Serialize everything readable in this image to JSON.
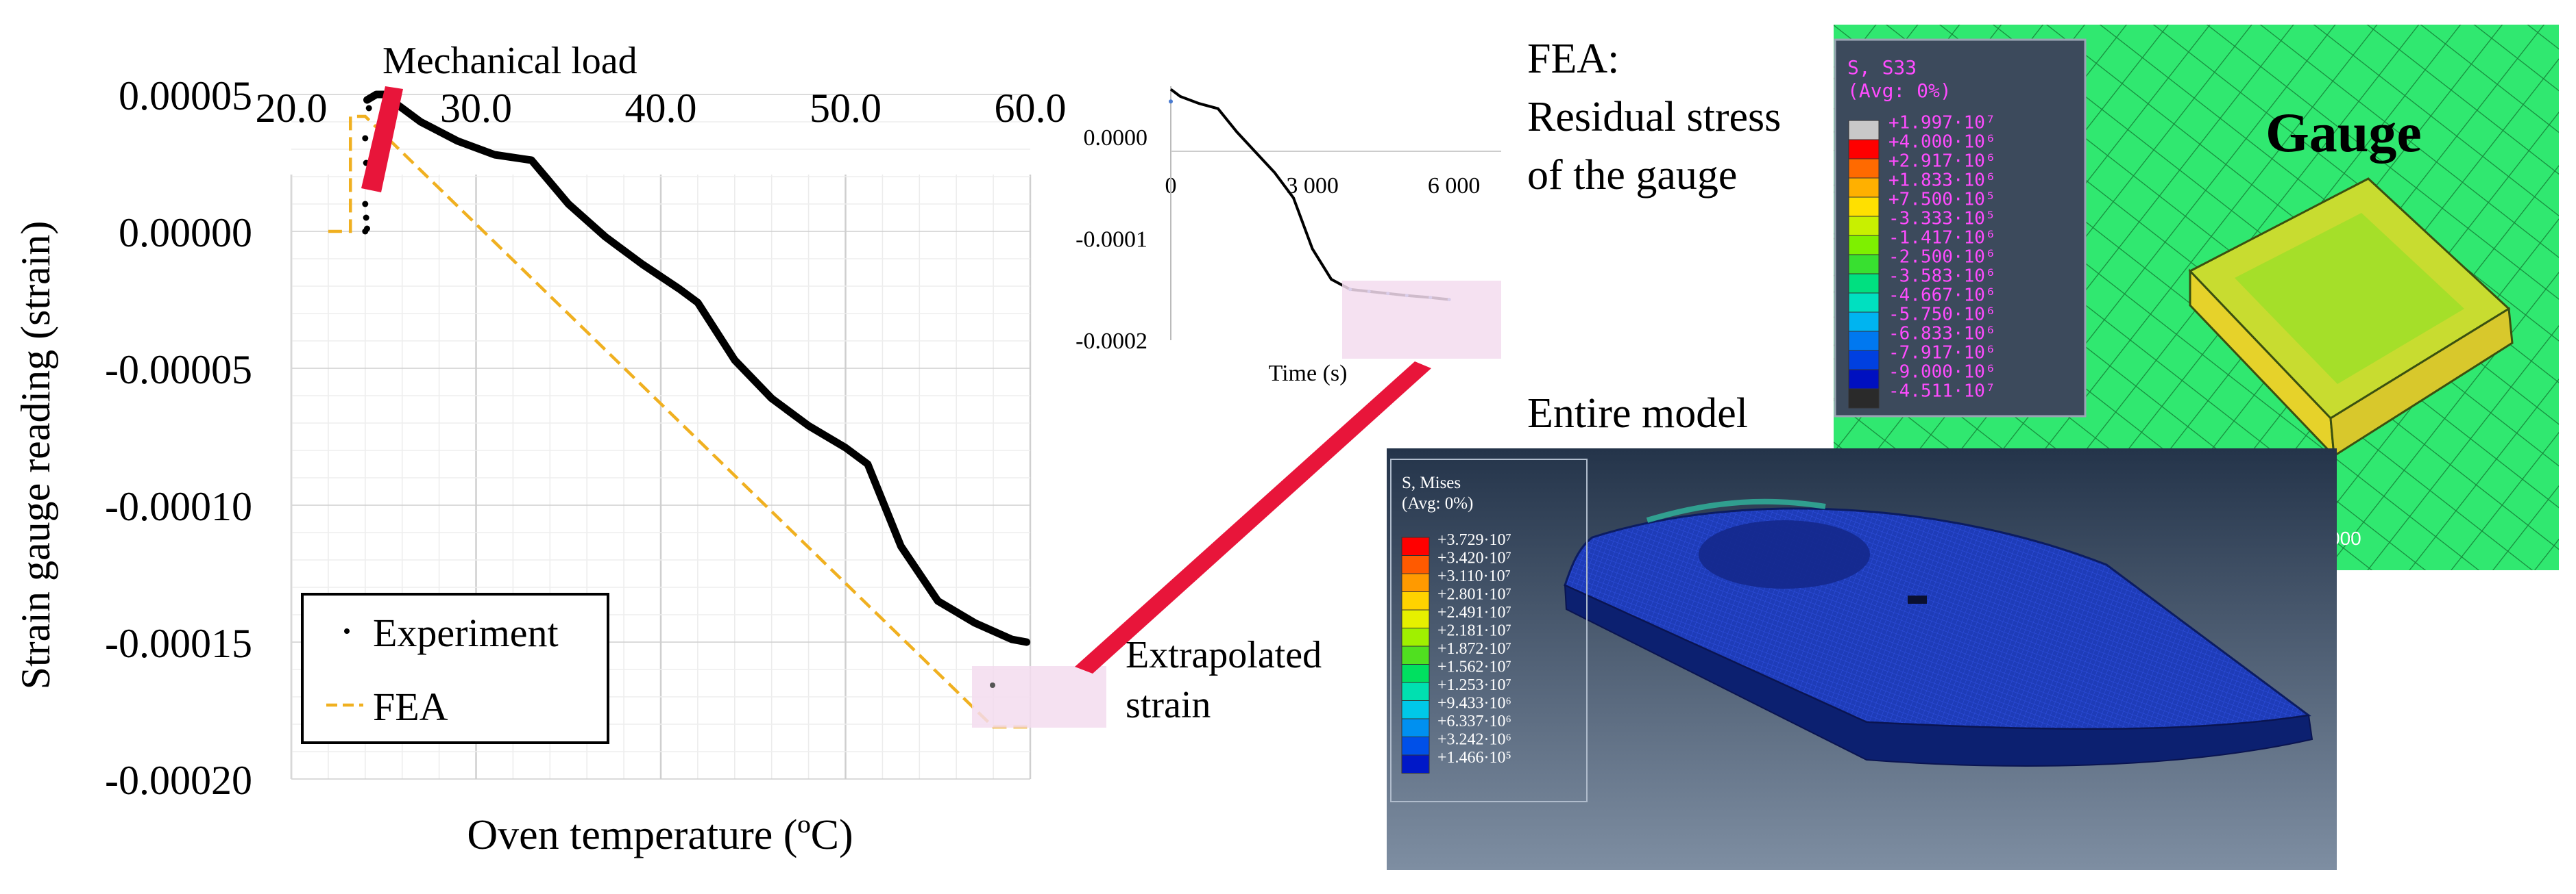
{
  "main_chart": {
    "ylabel": "Strain gauge reading (strain)",
    "xlabel": "Oven temperature (ºC)",
    "top_ticks": [
      "20.0",
      "30.0",
      "40.0",
      "50.0",
      "60.0"
    ],
    "y_ticks": [
      "0.00005",
      "0.00000",
      "-0.00005",
      "-0.00010",
      "-0.00015",
      "-0.00020"
    ],
    "xlim": [
      20,
      60
    ],
    "ylim": [
      -0.0002,
      5e-05
    ],
    "legend": {
      "experiment": "Experiment",
      "fea": "FEA"
    },
    "annotation_mech": "Mechanical load",
    "annotation_extrap": [
      "Extrapolated",
      "strain"
    ]
  },
  "inset_chart": {
    "xlabel": "Time (s)",
    "x_ticks": [
      "0",
      "3 000",
      "6 000"
    ],
    "y_ticks": [
      "0.0000",
      "-0.0001",
      "-0.0002"
    ]
  },
  "fea_labels": {
    "title": [
      "FEA:",
      "Residual stress",
      "of the gauge"
    ],
    "entire": "Entire model",
    "gauge": "Gauge"
  },
  "s33_legend": {
    "title": "S, S33",
    "avg": "(Avg: 0%)",
    "values": [
      "+1.997·10⁷",
      "+4.000·10⁶",
      "+2.917·10⁶",
      "+1.833·10⁶",
      "+7.500·10⁵",
      "-3.333·10⁵",
      "-1.417·10⁶",
      "-2.500·10⁶",
      "-3.583·10⁶",
      "-4.667·10⁶",
      "-5.750·10⁶",
      "-6.833·10⁶",
      "-7.917·10⁶",
      "-9.000·10⁶",
      "-4.511·10⁷"
    ],
    "colors": [
      "#c8c8c8",
      "#ff0000",
      "#ff6a00",
      "#ffb000",
      "#ffe000",
      "#c8f000",
      "#7ef000",
      "#38e030",
      "#00e080",
      "#00e0c0",
      "#00b4f0",
      "#0078f0",
      "#0040e0",
      "#0010c0",
      "#2a2a2a"
    ],
    "partial_text": "000"
  },
  "mises_legend": {
    "title": "S, Mises",
    "avg": "(Avg: 0%)",
    "values": [
      "+3.729·10⁷",
      "+3.420·10⁷",
      "+3.110·10⁷",
      "+2.801·10⁷",
      "+2.491·10⁷",
      "+2.181·10⁷",
      "+1.872·10⁷",
      "+1.562·10⁷",
      "+1.253·10⁷",
      "+9.433·10⁶",
      "+6.337·10⁶",
      "+3.242·10⁶",
      "+1.466·10⁵"
    ],
    "colors": [
      "#ff0000",
      "#ff5a00",
      "#ff9a00",
      "#ffd200",
      "#e6f000",
      "#a0f000",
      "#50e020",
      "#00e060",
      "#00e0b0",
      "#00c8e8",
      "#0090f0",
      "#0050e8",
      "#0018c8"
    ]
  },
  "chart_data": [
    {
      "type": "line",
      "title": "",
      "xlabel": "Oven temperature (ºC)",
      "ylabel": "Strain gauge reading (strain)",
      "xlim": [
        20,
        60
      ],
      "ylim": [
        -0.0002,
        5e-05
      ],
      "grid": true,
      "legend_position": "bottom-left",
      "series": [
        {
          "name": "Experiment",
          "x": [
            24.1,
            24.6,
            25.0,
            27.0,
            29.0,
            31.0,
            33.0,
            35.0,
            37.0,
            39.0,
            41.0,
            42.0,
            44.0,
            46.0,
            48.0,
            50.0,
            51.2,
            53.0,
            55.0,
            57.0,
            59.0,
            59.8
          ],
          "y": [
            4.8e-05,
            5e-05,
            5e-05,
            4e-05,
            3.3e-05,
            2.8e-05,
            2.6e-05,
            1e-05,
            -2e-06,
            -1.2e-05,
            -2.1e-05,
            -2.6e-05,
            -4.7e-05,
            -6.1e-05,
            -7.1e-05,
            -7.9e-05,
            -8.5e-05,
            -0.000115,
            -0.000135,
            -0.000143,
            -0.000149,
            -0.00015
          ]
        },
        {
          "name": "FEA",
          "x": [
            22.0,
            23.2,
            23.2,
            24.0,
            58.0,
            60.0
          ],
          "y": [
            0.0,
            0.0,
            4.2e-05,
            4.2e-05,
            -0.000181,
            -0.000181
          ]
        }
      ]
    },
    {
      "type": "line",
      "title": "",
      "xlabel": "Time (s)",
      "ylabel": "",
      "xlim": [
        0,
        7000
      ],
      "ylim": [
        -0.0002,
        5e-05
      ],
      "series": [
        {
          "name": "",
          "x": [
            0,
            200,
            600,
            1000,
            1400,
            1800,
            2200,
            2600,
            3000,
            3400,
            3800,
            4200,
            4600,
            5000,
            5500,
            5900
          ],
          "y": [
            4.7e-05,
            4e-05,
            3.3e-05,
            2.8e-05,
            5e-06,
            -1.5e-05,
            -3.5e-05,
            -6e-05,
            -0.00011,
            -0.00014,
            -0.00015,
            -0.000152,
            -0.000154,
            -0.000156,
            -0.000158,
            -0.00016
          ]
        }
      ]
    }
  ]
}
